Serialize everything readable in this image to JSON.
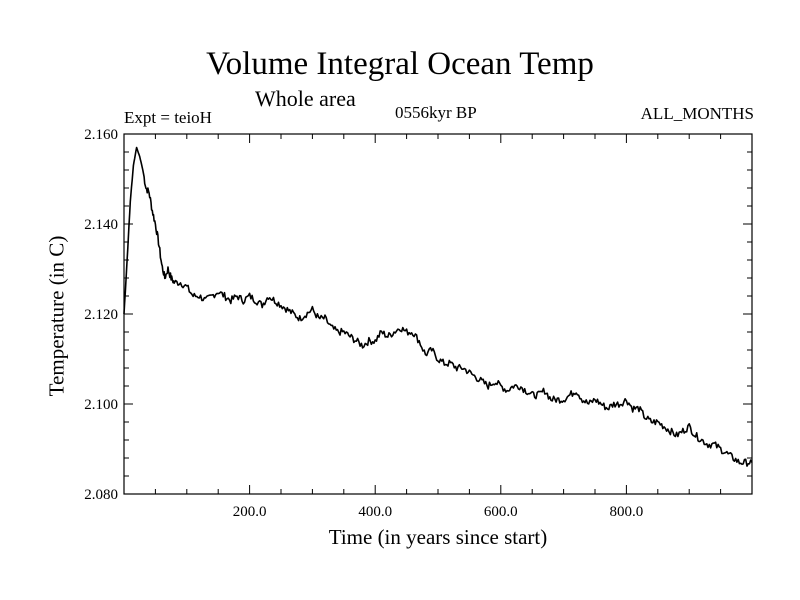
{
  "header": {
    "title": "Volume Integral Ocean Temp",
    "subtitle": "Whole area",
    "expt": "Expt = teioH",
    "period": "0556kyr BP",
    "months": "ALL_MONTHS"
  },
  "chart_data": {
    "type": "line",
    "title": "Volume Integral Ocean Temp",
    "subtitle": "Whole area",
    "xlabel": "Time (in years since start)",
    "ylabel": "Temperature (in C)",
    "xlim": [
      0,
      1000
    ],
    "ylim": [
      2.08,
      2.16
    ],
    "xticks": [
      200,
      400,
      600,
      800
    ],
    "xtick_labels": [
      "200.0",
      "400.0",
      "600.0",
      "800.0"
    ],
    "yticks": [
      2.08,
      2.1,
      2.12,
      2.14,
      2.16
    ],
    "ytick_labels": [
      "2.080",
      "2.100",
      "2.120",
      "2.140",
      "2.160"
    ],
    "grid": false,
    "series": [
      {
        "name": "Volume Integral Ocean Temp",
        "color": "#000000",
        "x": [
          0,
          5,
          10,
          15,
          20,
          25,
          30,
          35,
          40,
          45,
          50,
          55,
          60,
          65,
          70,
          75,
          80,
          90,
          100,
          110,
          120,
          130,
          140,
          150,
          160,
          170,
          180,
          190,
          200,
          210,
          220,
          230,
          240,
          250,
          260,
          270,
          280,
          290,
          300,
          310,
          320,
          330,
          340,
          350,
          360,
          370,
          380,
          390,
          400,
          410,
          420,
          430,
          440,
          450,
          460,
          470,
          480,
          490,
          500,
          510,
          520,
          530,
          540,
          550,
          560,
          570,
          580,
          590,
          600,
          610,
          620,
          630,
          640,
          650,
          660,
          670,
          680,
          690,
          700,
          710,
          720,
          730,
          740,
          750,
          760,
          770,
          780,
          790,
          800,
          810,
          820,
          830,
          840,
          850,
          860,
          870,
          880,
          890,
          900,
          910,
          920,
          930,
          940,
          950,
          960,
          970,
          980,
          990,
          1000
        ],
        "values": [
          2.12,
          2.132,
          2.145,
          2.153,
          2.157,
          2.155,
          2.152,
          2.148,
          2.147,
          2.143,
          2.14,
          2.136,
          2.131,
          2.128,
          2.13,
          2.128,
          2.127,
          2.127,
          2.126,
          2.124,
          2.124,
          2.123,
          2.124,
          2.125,
          2.124,
          2.123,
          2.124,
          2.123,
          2.124,
          2.123,
          2.122,
          2.124,
          2.123,
          2.122,
          2.121,
          2.12,
          2.119,
          2.12,
          2.121,
          2.119,
          2.119,
          2.117,
          2.116,
          2.116,
          2.115,
          2.114,
          2.113,
          2.114,
          2.114,
          2.116,
          2.115,
          2.116,
          2.117,
          2.116,
          2.116,
          2.114,
          2.111,
          2.112,
          2.11,
          2.109,
          2.109,
          2.108,
          2.108,
          2.107,
          2.106,
          2.105,
          2.104,
          2.105,
          2.104,
          2.103,
          2.104,
          2.104,
          2.103,
          2.102,
          2.102,
          2.103,
          2.101,
          2.101,
          2.101,
          2.102,
          2.103,
          2.101,
          2.1,
          2.101,
          2.1,
          2.099,
          2.1,
          2.1,
          2.101,
          2.099,
          2.099,
          2.097,
          2.096,
          2.096,
          2.095,
          2.094,
          2.093,
          2.094,
          2.095,
          2.093,
          2.092,
          2.091,
          2.091,
          2.09,
          2.089,
          2.088,
          2.087,
          2.087,
          2.087
        ]
      }
    ]
  }
}
